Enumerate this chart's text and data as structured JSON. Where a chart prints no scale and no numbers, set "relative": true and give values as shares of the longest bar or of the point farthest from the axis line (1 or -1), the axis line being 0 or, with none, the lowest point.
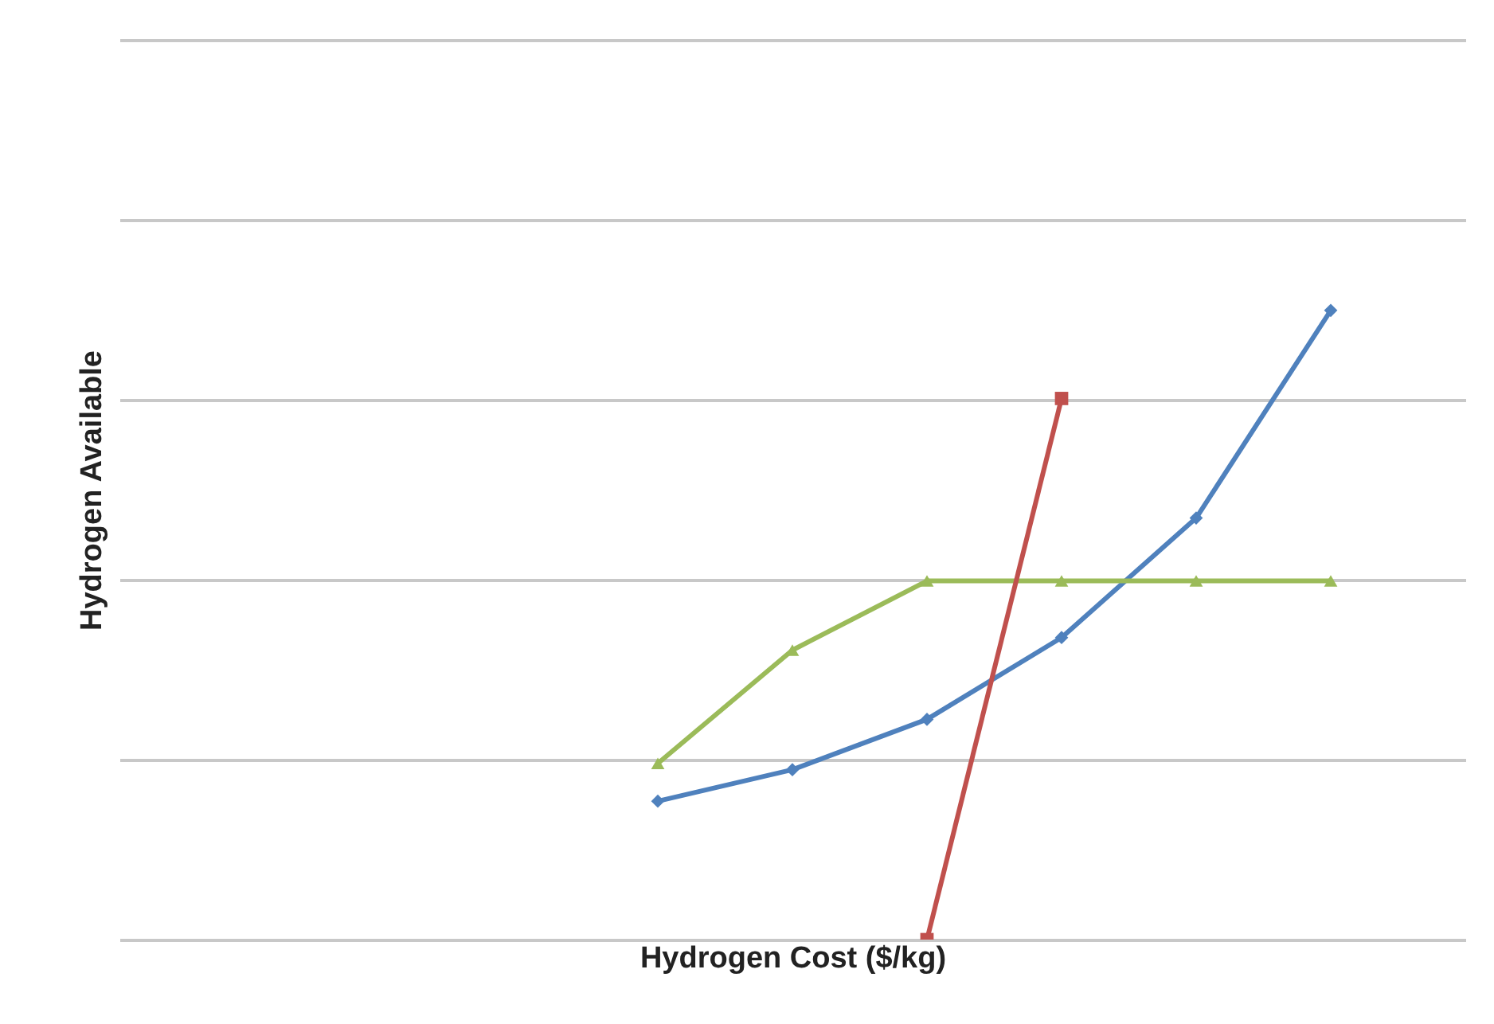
{
  "chart_data": {
    "type": "line",
    "xlabel": "Hydrogen Cost ($/kg)",
    "ylabel": "Hydrogen Available",
    "relative": true,
    "grid": "y",
    "tick_labels": false,
    "categories": [
      null,
      null,
      null,
      null,
      null,
      null,
      null,
      null,
      null,
      null,
      null
    ],
    "series": [
      {
        "color": "#4f81bd",
        "marker": "diamond",
        "values": [
          null,
          null,
          null,
          null,
          0.22,
          0.27,
          0.35,
          0.48,
          0.67,
          1,
          null
        ]
      },
      {
        "color": "#9bbb59",
        "marker": "triangle",
        "values": [
          null,
          null,
          null,
          null,
          0.28,
          0.46,
          0.57,
          0.57,
          0.57,
          0.57,
          null
        ]
      },
      {
        "color": "#c0504d",
        "marker": "square",
        "values": [
          null,
          null,
          null,
          null,
          null,
          null,
          0,
          0.86,
          null,
          null,
          null
        ]
      }
    ]
  }
}
